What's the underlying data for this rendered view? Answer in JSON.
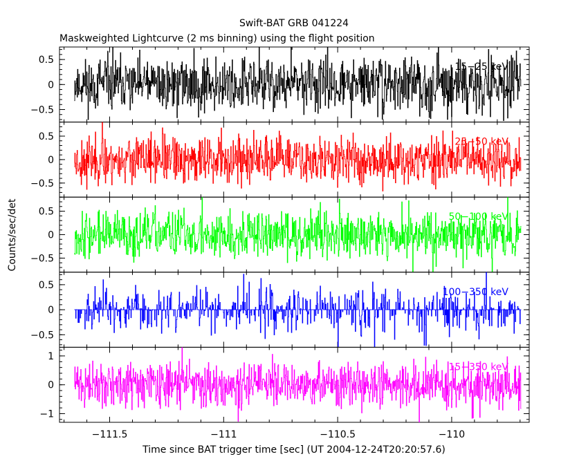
{
  "title": "Swift-BAT GRB 041224",
  "subtitle": "Maskweighted Lightcurve (2 ms binning) using the flight position",
  "ylabel": "Counts/sec/det",
  "xlabel": "Time since BAT trigger time [sec] (UT 2004-12-24T20:20:57.6)",
  "colors": {
    "frame": "#000000",
    "band1": "#000000",
    "band2": "#ff0000",
    "band3": "#00ff00",
    "band4": "#0000ff",
    "band5": "#ff00ff"
  },
  "chart_data": {
    "type": "line",
    "title": "Swift-BAT GRB 041224",
    "subtitle": "Maskweighted Lightcurve (2 ms binning) using the flight position",
    "xlabel": "Time since BAT trigger time [sec] (UT 2004-12-24T20:20:57.6)",
    "ylabel": "Counts/sec/det",
    "xlim": [
      -111.72,
      -109.66
    ],
    "data_range": [
      -111.655,
      -109.695
    ],
    "bin_width": 0.002,
    "x_ticks": [
      {
        "value": -111.5,
        "label": "−111.5"
      },
      {
        "value": -111,
        "label": "−111"
      },
      {
        "value": -110.5,
        "label": "−110.5"
      },
      {
        "value": -110,
        "label": "−110"
      }
    ],
    "grid": false,
    "legend": "in-panel labels top-right",
    "panels": [
      {
        "name": "15−25 keV",
        "color": "#000000",
        "ylim": [
          -0.75,
          0.75
        ],
        "yticks": [
          {
            "v": 0.5,
            "l": "0.5"
          },
          {
            "v": 0,
            "l": "0"
          },
          {
            "v": -0.5,
            "l": "−0.5"
          }
        ],
        "noise_amplitude": 0.32,
        "seed": 11
      },
      {
        "name": "25−50 keV",
        "color": "#ff0000",
        "ylim": [
          -0.8,
          0.8
        ],
        "yticks": [
          {
            "v": 0.5,
            "l": "0.5"
          },
          {
            "v": 0,
            "l": "0"
          },
          {
            "v": -0.5,
            "l": "−0.5"
          }
        ],
        "noise_amplitude": 0.3,
        "seed": 23
      },
      {
        "name": "50−100 keV",
        "color": "#00ff00",
        "ylim": [
          -0.8,
          0.8
        ],
        "yticks": [
          {
            "v": 0.5,
            "l": "0.5"
          },
          {
            "v": 0,
            "l": "0"
          },
          {
            "v": -0.5,
            "l": "−0.5"
          }
        ],
        "noise_amplitude": 0.3,
        "seed": 37
      },
      {
        "name": "100−350 keV",
        "color": "#0000ff",
        "ylim": [
          -0.75,
          0.75
        ],
        "yticks": [
          {
            "v": 0.5,
            "l": "0.5"
          },
          {
            "v": 0,
            "l": "0"
          },
          {
            "v": -0.5,
            "l": "−0.5"
          }
        ],
        "noise_amplitude": 0.3,
        "seed": 53,
        "sparse": true
      },
      {
        "name": "15−350 keV",
        "color": "#ff00ff",
        "ylim": [
          -1.3,
          1.3
        ],
        "yticks": [
          {
            "v": 1,
            "l": "1"
          },
          {
            "v": 0,
            "l": "0"
          },
          {
            "v": -1,
            "l": "−1"
          }
        ],
        "noise_amplitude": 0.45,
        "seed": 71
      }
    ]
  }
}
